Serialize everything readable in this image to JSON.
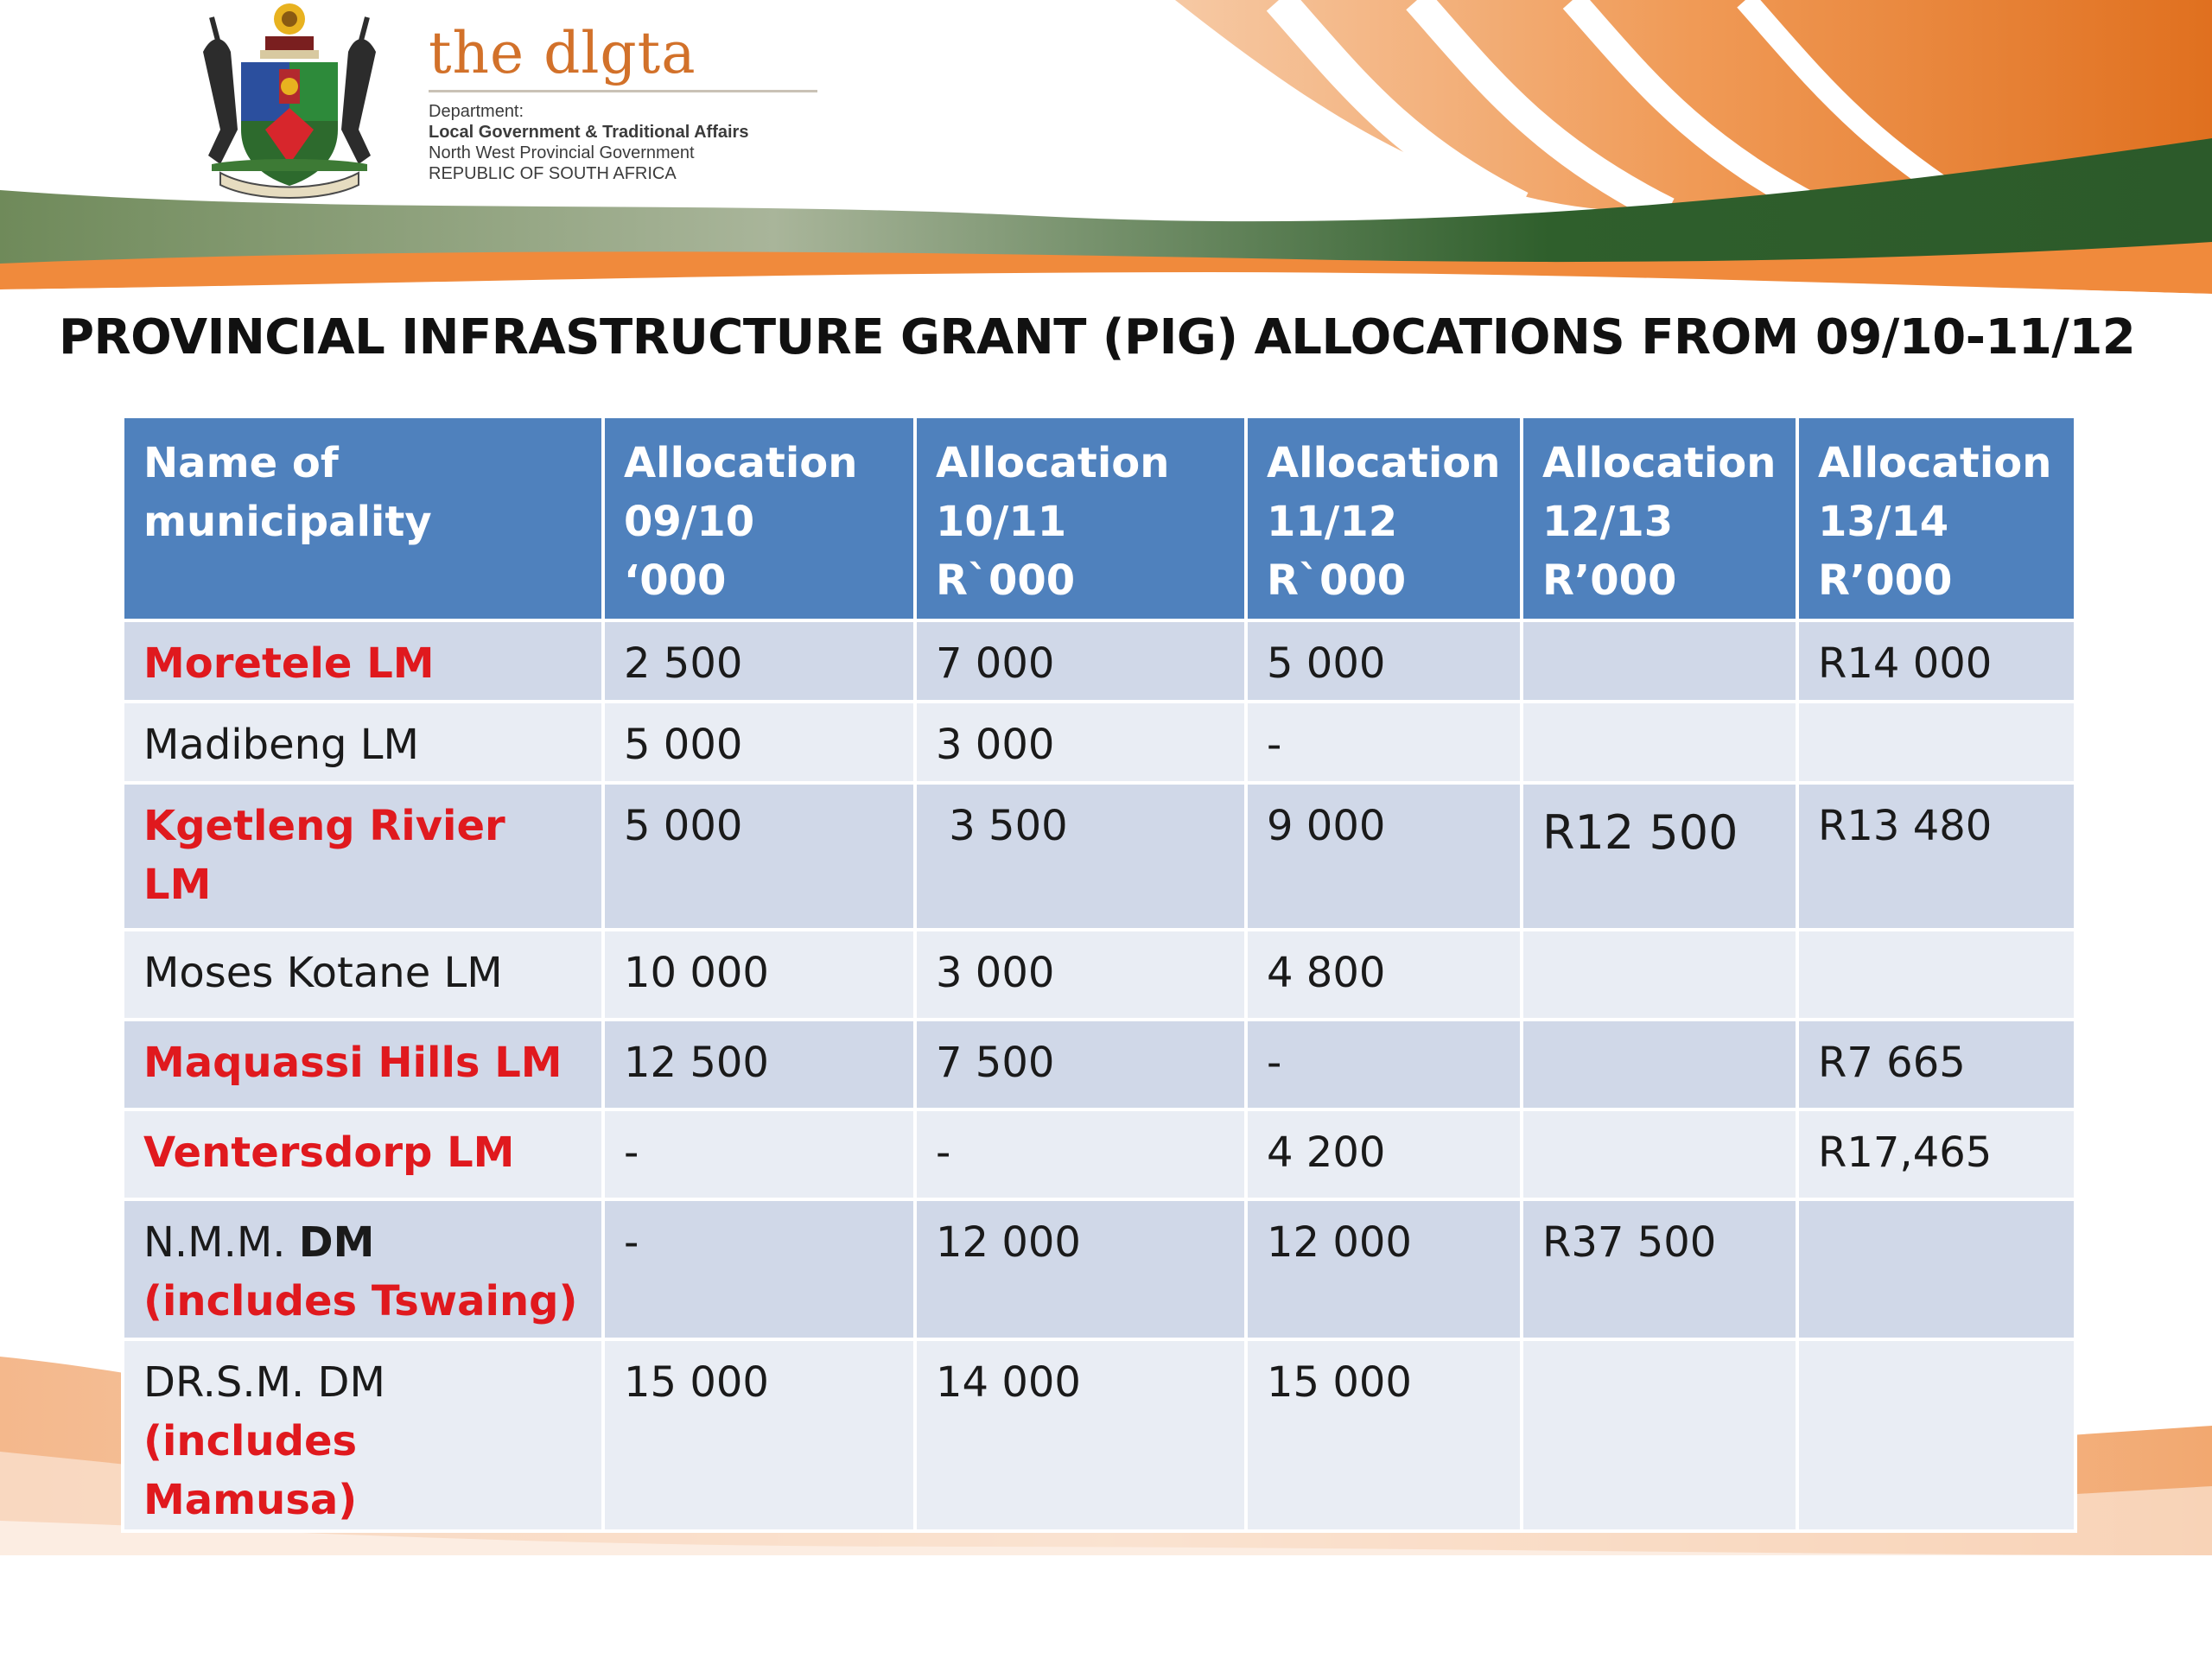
{
  "header": {
    "brand_name": "the dlgta",
    "department_label": "Department:",
    "department_name": "Local Government & Traditional Affairs",
    "government": "North West Provincial Government",
    "country": "REPUBLIC OF SOUTH AFRICA",
    "crest_icon": "coat-of-arms-icon"
  },
  "title": "PROVINCIAL INFRASTRUCTURE GRANT (PIG) ALLOCATIONS FROM 09/10-11/12",
  "colors": {
    "header_blue": "#4f81bd",
    "row_dark": "#d0d8e8",
    "row_light": "#e9edf4",
    "highlight_red": "#e0191e",
    "brand_orange": "#d2712a",
    "brand_green": "#3f6f3a"
  },
  "table": {
    "headers": [
      [
        "Name of",
        "municipality"
      ],
      [
        "Allocation",
        "09/10",
        "‘000"
      ],
      [
        "Allocation",
        "10/11",
        "R`000"
      ],
      [
        "Allocation",
        "11/12",
        "R`000"
      ],
      [
        "Allocation",
        "12/13",
        "R’000"
      ],
      [
        "Allocation",
        "13/14",
        "R’000"
      ]
    ],
    "rows": [
      {
        "name": "Moretele LM",
        "a0910": "2 500",
        "a1011": "7 000",
        "a1112": "5 000",
        "a1213": "",
        "a1314": "R14 000"
      },
      {
        "name": "Madibeng LM",
        "a0910": "5 000",
        "a1011": "3 000",
        "a1112": "-",
        "a1213": "",
        "a1314": ""
      },
      {
        "name": "Kgetleng Rivier LM",
        "a0910": "5 000",
        "a1011": " 3 500",
        "a1112": "9 000",
        "a1213": "R12 500",
        "a1314": "R13 480"
      },
      {
        "name": "Moses Kotane LM",
        "a0910": "10 000",
        "a1011": "3 000",
        "a1112": "4 800",
        "a1213": "",
        "a1314": ""
      },
      {
        "name": "Maquassi Hills LM",
        "a0910": "12 500",
        "a1011": "7 500",
        "a1112": "-",
        "a1213": "",
        "a1314": "R7 665"
      },
      {
        "name": "Ventersdorp LM",
        "a0910": "-",
        "a1011": "-",
        "a1112": "4 200",
        "a1213": "",
        "a1314": "R17,465"
      },
      {
        "name_prefix": "N.M.M. ",
        "name_bold": "DM ",
        "name_note": "(includes Tswaing)",
        "a0910": "-",
        "a1011": "12 000",
        "a1112": "12 000",
        "a1213": "R37 500",
        "a1314": ""
      },
      {
        "name_prefix": "DR.S.M. DM ",
        "name_note": "(includes Mamusa)",
        "a0910": "15 000",
        "a1011": "14 000",
        "a1112": "15 000",
        "a1213": "",
        "a1314": ""
      }
    ]
  }
}
